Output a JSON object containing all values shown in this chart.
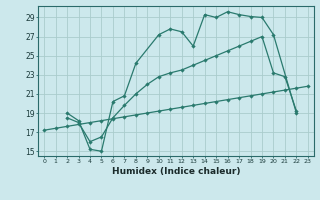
{
  "title": "",
  "xlabel": "Humidex (Indice chaleur)",
  "bg_color": "#cce8ec",
  "grid_color": "#aacccc",
  "line_color": "#2a7a6e",
  "xlim": [
    -0.5,
    23.5
  ],
  "ylim": [
    14.5,
    30.2
  ],
  "xticks": [
    0,
    1,
    2,
    3,
    4,
    5,
    6,
    7,
    8,
    9,
    10,
    11,
    12,
    13,
    14,
    15,
    16,
    17,
    18,
    19,
    20,
    21,
    22,
    23
  ],
  "yticks": [
    15,
    17,
    19,
    21,
    23,
    25,
    27,
    29
  ],
  "line1_x": [
    2,
    3,
    4,
    5,
    6,
    7,
    8,
    10,
    11,
    12,
    13,
    14,
    15,
    16,
    17,
    18,
    19,
    20,
    22
  ],
  "line1_y": [
    19.0,
    18.2,
    15.2,
    15.0,
    20.2,
    20.8,
    24.2,
    27.2,
    27.8,
    27.5,
    26.0,
    29.3,
    29.0,
    29.6,
    29.3,
    29.1,
    29.0,
    27.2,
    19.0
  ],
  "line2_x": [
    2,
    3,
    4,
    5,
    6,
    7,
    8,
    9,
    10,
    11,
    12,
    13,
    14,
    15,
    16,
    17,
    18,
    19,
    20,
    21,
    22
  ],
  "line2_y": [
    18.5,
    18.0,
    16.0,
    16.5,
    18.5,
    19.8,
    21.0,
    22.0,
    22.8,
    23.2,
    23.5,
    24.0,
    24.5,
    25.0,
    25.5,
    26.0,
    26.5,
    27.0,
    23.2,
    22.8,
    19.2
  ],
  "line3_x": [
    0,
    1,
    2,
    3,
    4,
    5,
    6,
    7,
    8,
    9,
    10,
    11,
    12,
    13,
    14,
    15,
    16,
    17,
    18,
    19,
    20,
    21,
    22,
    23
  ],
  "line3_y": [
    17.2,
    17.4,
    17.6,
    17.8,
    18.0,
    18.2,
    18.4,
    18.6,
    18.8,
    19.0,
    19.2,
    19.4,
    19.6,
    19.8,
    20.0,
    20.2,
    20.4,
    20.6,
    20.8,
    21.0,
    21.2,
    21.4,
    21.6,
    21.8
  ]
}
